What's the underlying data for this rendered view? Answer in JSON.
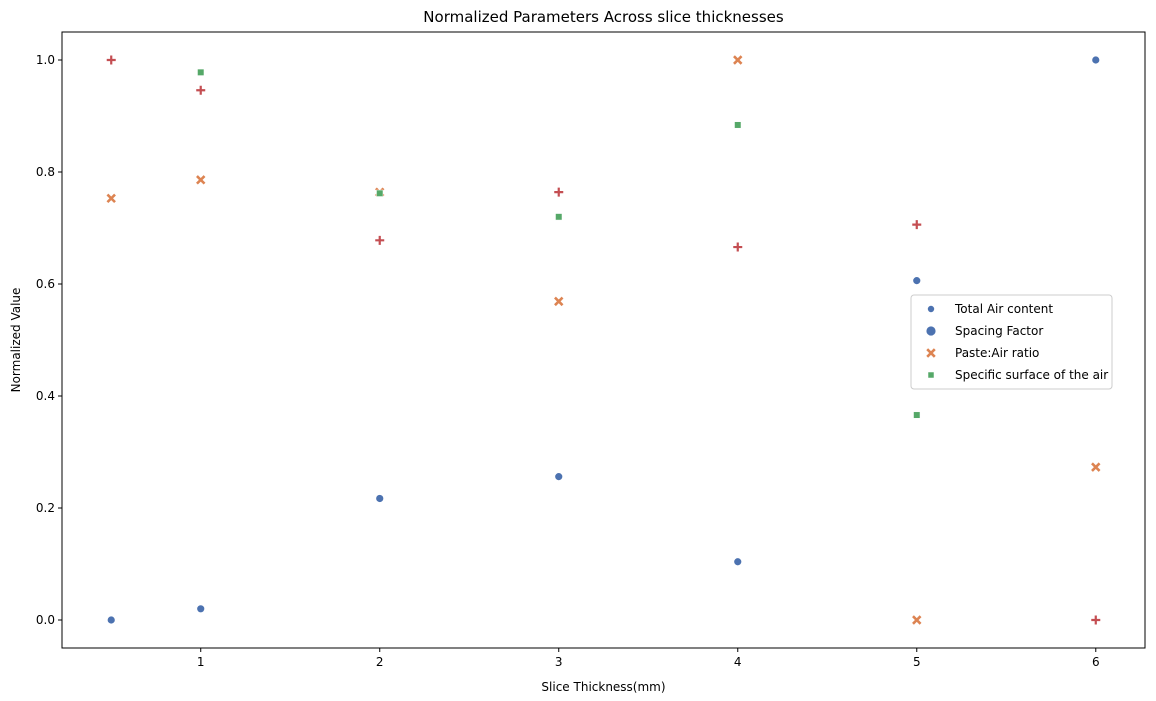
{
  "chart_data": {
    "type": "scatter",
    "title": "Normalized Parameters Across slice thicknesses",
    "xlabel": "Slice Thickness(mm)",
    "ylabel": "Normalized Value",
    "xlim": [
      0.225,
      6.275
    ],
    "ylim": [
      -0.05,
      1.05
    ],
    "xticks": [
      1,
      2,
      3,
      4,
      5,
      6
    ],
    "yticks": [
      0.0,
      0.2,
      0.4,
      0.6,
      0.8,
      1.0
    ],
    "grid": false,
    "legend_position": "center-right",
    "series": [
      {
        "name": "Total Air content",
        "marker": "small-circle",
        "color": "#4c72b0",
        "x": [
          0.5,
          1,
          2,
          3,
          4,
          5,
          6
        ],
        "y": [
          0.0,
          0.02,
          0.217,
          0.256,
          0.104,
          0.606,
          1.0
        ]
      },
      {
        "name": "Spacing Factor",
        "marker": "circle",
        "color": "#4c72b0",
        "x": [],
        "y": []
      },
      {
        "name": "Paste:Air ratio",
        "marker": "x",
        "color": "#dd8452",
        "x": [
          0.5,
          1,
          2,
          3,
          4,
          5,
          6
        ],
        "y": [
          0.753,
          0.786,
          0.764,
          0.569,
          1.0,
          0.0,
          0.273
        ]
      },
      {
        "name": "Specific surface of the air",
        "marker": "square",
        "color": "#55a868",
        "x": [
          1,
          2,
          3,
          4,
          5
        ],
        "y": [
          0.978,
          0.762,
          0.72,
          0.884,
          0.366
        ]
      },
      {
        "name": "",
        "marker": "plus",
        "color": "#c44e52",
        "x": [
          0.5,
          1,
          2,
          3,
          4,
          5,
          6
        ],
        "y": [
          1.0,
          0.946,
          0.678,
          0.764,
          0.666,
          0.706,
          0.0
        ]
      }
    ]
  }
}
